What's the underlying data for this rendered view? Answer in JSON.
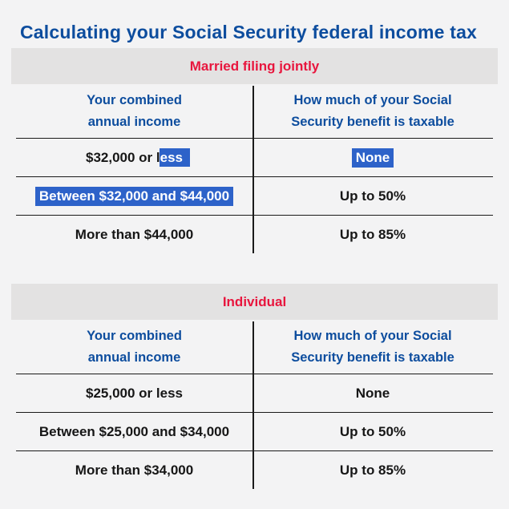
{
  "page": {
    "title": "Calculating your Social Security federal income tax"
  },
  "colors": {
    "title_blue": "#0d4d9e",
    "table_title_red": "#e8163e",
    "selection_blue": "#2d62c9",
    "selection_text": "#ffffff",
    "band_gray": "#e3e2e2",
    "page_background": "#f3f3f4",
    "body_text": "#161616"
  },
  "tables": [
    {
      "title": "Married filing jointly",
      "columns": {
        "income_line1": "Your combined",
        "income_line2": "annual income",
        "taxable_line1": "How much of your Social",
        "taxable_line2": "Security benefit is taxable"
      },
      "rows": [
        {
          "income_unselected": "$32,000 or l",
          "income_selected": "ess",
          "taxable": "None"
        },
        {
          "income": "Between $32,000 and $44,000",
          "taxable": "Up to 50%"
        },
        {
          "income": "More than $44,000",
          "taxable": "Up to 85%"
        }
      ]
    },
    {
      "title": "Individual",
      "columns": {
        "income_line1": "Your combined",
        "income_line2": "annual income",
        "taxable_line1": "How much of your Social",
        "taxable_line2": "Security benefit is taxable"
      },
      "rows": [
        {
          "income": "$25,000 or less",
          "taxable": "None"
        },
        {
          "income": "Between $25,000 and $34,000",
          "taxable": "Up to 50%"
        },
        {
          "income": "More than $34,000",
          "taxable": "Up to 85%"
        }
      ]
    }
  ]
}
